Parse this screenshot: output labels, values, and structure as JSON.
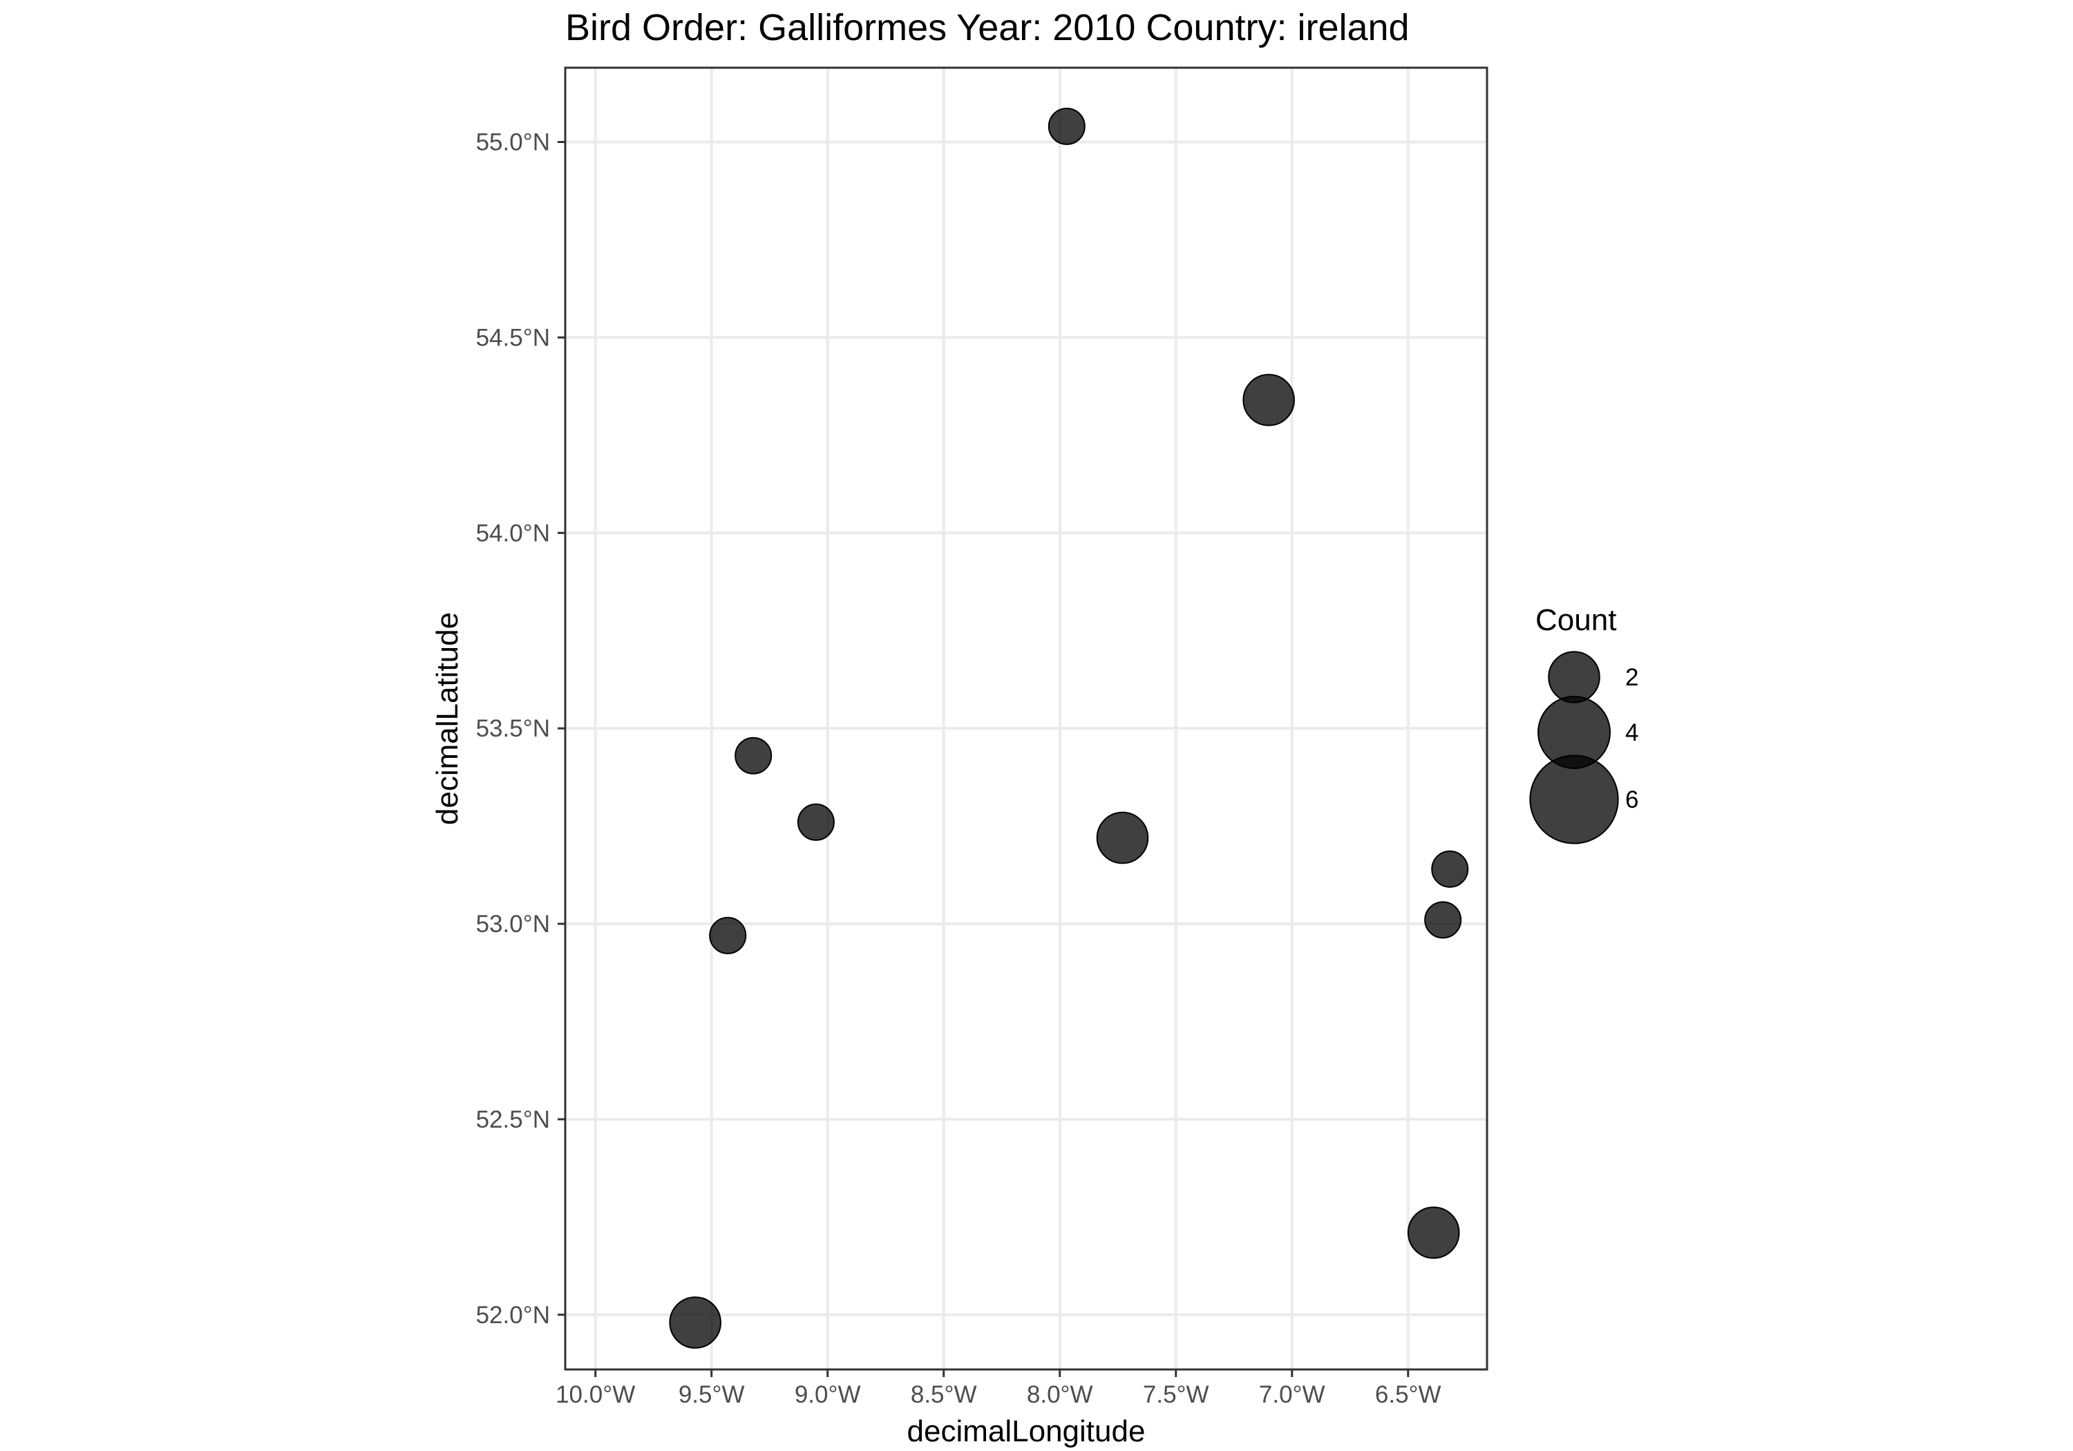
{
  "chart_data": {
    "type": "scatter",
    "title": "Bird Order: Galliformes Year: 2010 Country: ireland",
    "xlabel": "decimalLongitude",
    "ylabel": "decimalLatitude",
    "xlim": [
      -10.13,
      -6.16
    ],
    "ylim": [
      51.86,
      55.19
    ],
    "x_ticks": [
      {
        "value": -10.0,
        "label": "10.0°W"
      },
      {
        "value": -9.5,
        "label": "9.5°W"
      },
      {
        "value": -9.0,
        "label": "9.0°W"
      },
      {
        "value": -8.5,
        "label": "8.5°W"
      },
      {
        "value": -8.0,
        "label": "8.0°W"
      },
      {
        "value": -7.5,
        "label": "7.5°W"
      },
      {
        "value": -7.0,
        "label": "7.0°W"
      },
      {
        "value": -6.5,
        "label": "6.5°W"
      }
    ],
    "y_ticks": [
      {
        "value": 52.0,
        "label": "52.0°N"
      },
      {
        "value": 52.5,
        "label": "52.5°N"
      },
      {
        "value": 53.0,
        "label": "53.0°N"
      },
      {
        "value": 53.5,
        "label": "53.5°N"
      },
      {
        "value": 54.0,
        "label": "54.0°N"
      },
      {
        "value": 54.5,
        "label": "54.5°N"
      },
      {
        "value": 55.0,
        "label": "55.0°N"
      }
    ],
    "grid": true,
    "legend": {
      "title": "Count",
      "position": "right",
      "entries": [
        {
          "value": 2,
          "label": "2"
        },
        {
          "value": 4,
          "label": "4"
        },
        {
          "value": 6,
          "label": "6"
        }
      ]
    },
    "points": [
      {
        "x": -7.97,
        "y": 55.04,
        "count": 1
      },
      {
        "x": -7.1,
        "y": 54.34,
        "count": 2
      },
      {
        "x": -9.32,
        "y": 53.43,
        "count": 1
      },
      {
        "x": -9.05,
        "y": 53.26,
        "count": 1
      },
      {
        "x": -7.73,
        "y": 53.22,
        "count": 2
      },
      {
        "x": -6.32,
        "y": 53.14,
        "count": 1
      },
      {
        "x": -6.35,
        "y": 53.01,
        "count": 1
      },
      {
        "x": -9.43,
        "y": 52.97,
        "count": 1
      },
      {
        "x": -6.39,
        "y": 52.21,
        "count": 2
      },
      {
        "x": -9.57,
        "y": 51.98,
        "count": 2
      }
    ],
    "point_color": "#000000"
  }
}
